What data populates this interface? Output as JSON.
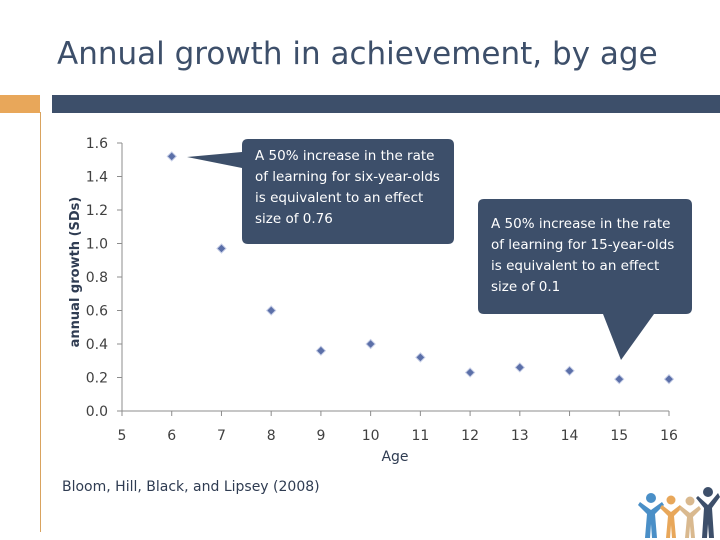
{
  "slide": {
    "title": "Annual growth in achievement, by age",
    "citation": "Bloom, Hill, Black, and Lipsey (2008)"
  },
  "callouts": {
    "six": "A 50% increase in the rate of learning for six-year-olds is equivalent  to an effect size of 0.76",
    "fifteen": "A 50% increase in the rate of learning for 15-year-olds is equivalent  to an effect size of 0.1"
  },
  "colors": {
    "title": "#3d4f6a",
    "accent": "#e8a75a",
    "callout": "#3d4f6a",
    "marker": "#5b6fa8"
  },
  "chart_data": {
    "type": "scatter",
    "title": "",
    "xlabel": "Age",
    "ylabel": "annual growth (SDs)",
    "x": [
      6,
      7,
      8,
      9,
      10,
      11,
      12,
      13,
      14,
      15,
      16
    ],
    "y": [
      1.52,
      0.97,
      0.6,
      0.36,
      0.4,
      0.32,
      0.23,
      0.26,
      0.24,
      0.19,
      0.19
    ],
    "xlim": [
      5,
      16
    ],
    "ylim": [
      0.0,
      1.6
    ],
    "xticks": [
      "5",
      "6",
      "7",
      "8",
      "9",
      "10",
      "11",
      "12",
      "13",
      "14",
      "15",
      "16"
    ],
    "yticks": [
      "0.0",
      "0.2",
      "0.4",
      "0.6",
      "0.8",
      "1.0",
      "1.2",
      "1.4",
      "1.6"
    ],
    "grid": false,
    "marker": "diamond"
  }
}
